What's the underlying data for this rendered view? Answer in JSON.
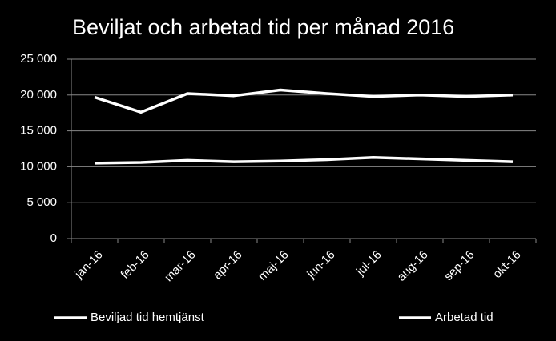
{
  "chart_data": {
    "type": "line",
    "title": "Beviljat och arbetad tid per månad 2016",
    "categories": [
      "jan-16",
      "feb-16",
      "mar-16",
      "apr-16",
      "maj-16",
      "jun-16",
      "jul-16",
      "aug-16",
      "sep-16",
      "okt-16"
    ],
    "series": [
      {
        "name": "Beviljad tid hemtjänst",
        "color": "#ffffff",
        "values": [
          19700,
          17600,
          20200,
          19900,
          20700,
          20200,
          19800,
          20000,
          19800,
          20000
        ]
      },
      {
        "name": "Arbetad tid",
        "color": "#ffffff",
        "values": [
          10500,
          10600,
          10900,
          10700,
          10800,
          11000,
          11300,
          11100,
          10900,
          10700
        ]
      }
    ],
    "ylim": [
      0,
      25000
    ],
    "yticks": [
      0,
      {
        "value": 5000,
        "label": "5 000"
      },
      {
        "value": 10000,
        "label": "10 000"
      },
      {
        "value": 15000,
        "label": "15 000"
      },
      {
        "value": 20000,
        "label": "20 000"
      },
      {
        "value": 25000,
        "label": "25 000"
      }
    ],
    "grid": true,
    "legend": "bottom"
  }
}
